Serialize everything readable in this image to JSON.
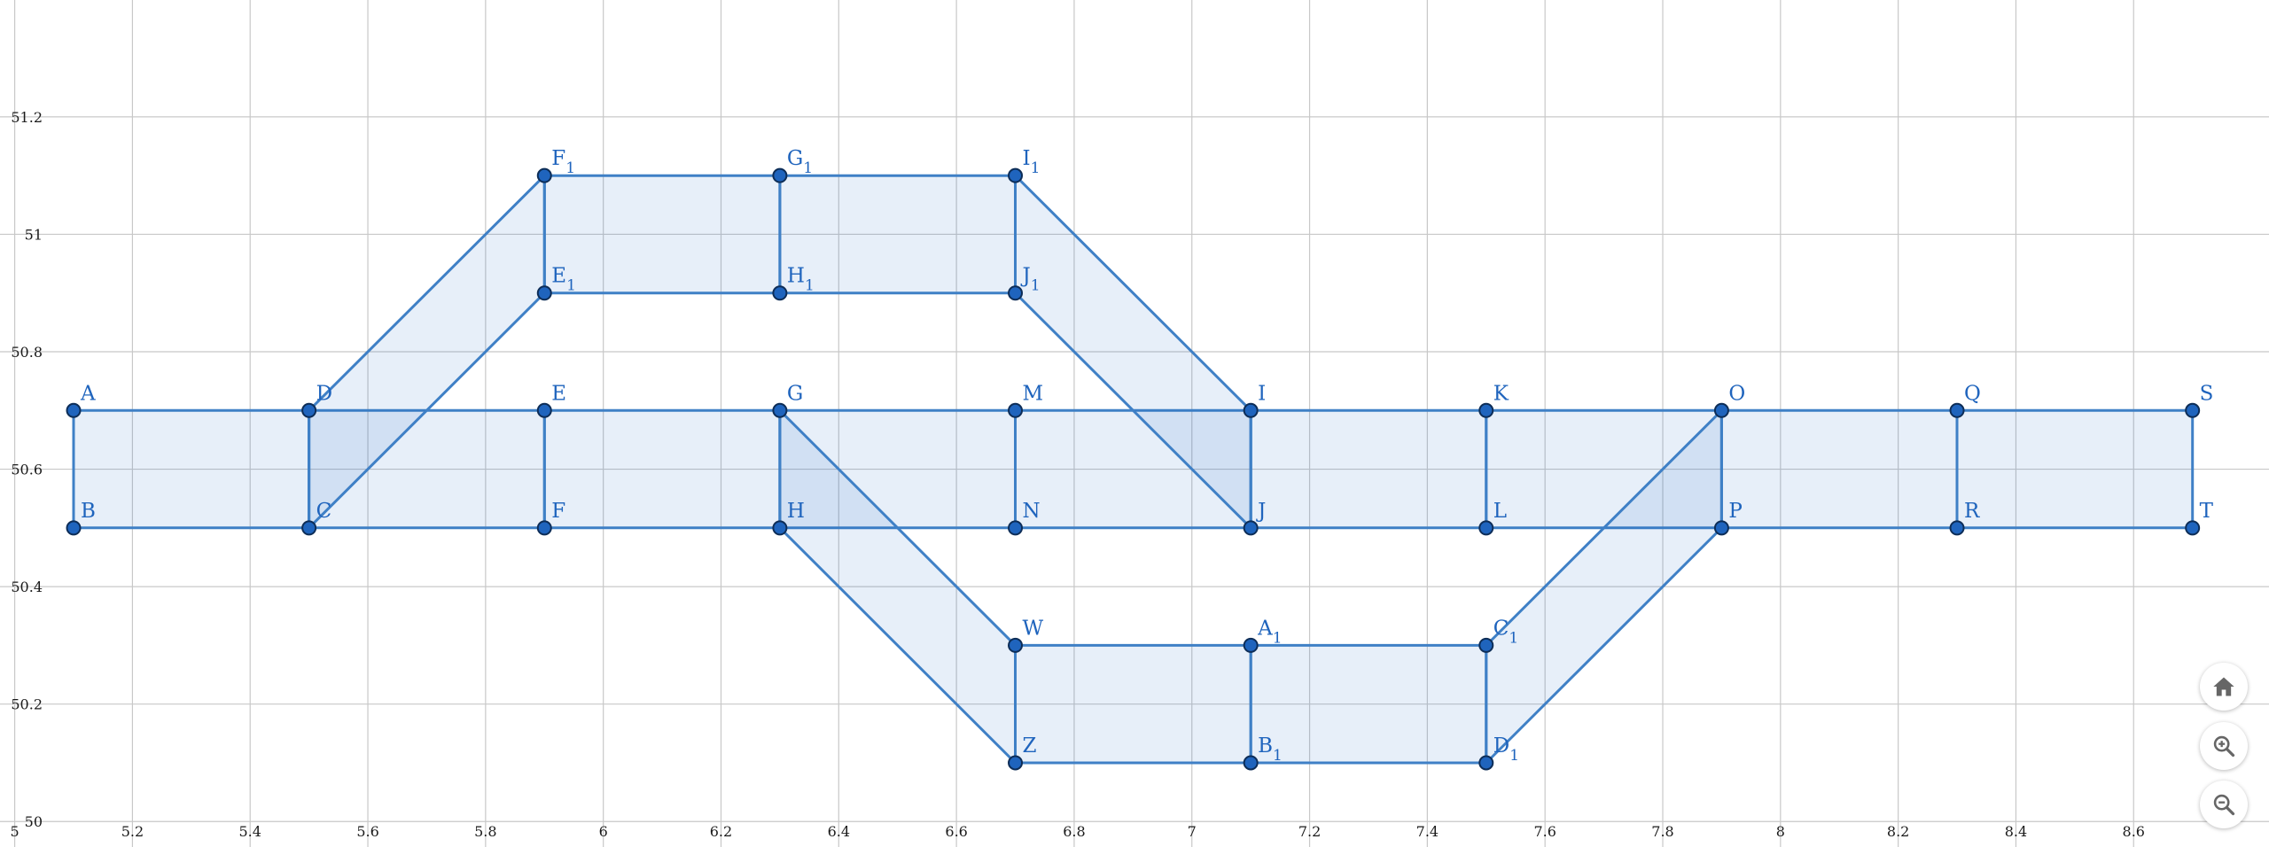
{
  "axes": {
    "xlim": [
      4.975,
      8.83
    ],
    "ylim": [
      49.9566,
      51.399
    ],
    "x_ticks": [
      "5",
      "5.2",
      "5.4",
      "5.6",
      "5.8",
      "6",
      "6.2",
      "6.4",
      "6.6",
      "6.8",
      "7",
      "7.2",
      "7.4",
      "7.6",
      "7.8",
      "8",
      "8.2",
      "8.4",
      "8.6"
    ],
    "y_ticks": [
      "50",
      "50.2",
      "50.4",
      "50.6",
      "50.8",
      "51",
      "51.2"
    ],
    "grid": true
  },
  "points": [
    {
      "name": "A",
      "x": 5.1,
      "y": 50.7
    },
    {
      "name": "B",
      "x": 5.1,
      "y": 50.5
    },
    {
      "name": "D",
      "x": 5.5,
      "y": 50.7
    },
    {
      "name": "C",
      "x": 5.5,
      "y": 50.5
    },
    {
      "name": "E",
      "x": 5.9,
      "y": 50.7
    },
    {
      "name": "F",
      "x": 5.9,
      "y": 50.5
    },
    {
      "name": "G",
      "x": 6.3,
      "y": 50.7
    },
    {
      "name": "H",
      "x": 6.3,
      "y": 50.5
    },
    {
      "name": "M",
      "x": 6.7,
      "y": 50.7
    },
    {
      "name": "N",
      "x": 6.7,
      "y": 50.5
    },
    {
      "name": "I",
      "x": 7.1,
      "y": 50.7
    },
    {
      "name": "J",
      "x": 7.1,
      "y": 50.5
    },
    {
      "name": "K",
      "x": 7.5,
      "y": 50.7
    },
    {
      "name": "L",
      "x": 7.5,
      "y": 50.5
    },
    {
      "name": "O",
      "x": 7.9,
      "y": 50.7
    },
    {
      "name": "P",
      "x": 7.9,
      "y": 50.5
    },
    {
      "name": "Q",
      "x": 8.3,
      "y": 50.7
    },
    {
      "name": "R",
      "x": 8.3,
      "y": 50.5
    },
    {
      "name": "S",
      "x": 8.7,
      "y": 50.7
    },
    {
      "name": "T",
      "x": 8.7,
      "y": 50.5
    },
    {
      "name": "F",
      "sub": "1",
      "x": 5.9,
      "y": 51.1
    },
    {
      "name": "E",
      "sub": "1",
      "x": 5.9,
      "y": 50.9
    },
    {
      "name": "G",
      "sub": "1",
      "x": 6.3,
      "y": 51.1
    },
    {
      "name": "H",
      "sub": "1",
      "x": 6.3,
      "y": 50.9
    },
    {
      "name": "I",
      "sub": "1",
      "x": 6.7,
      "y": 51.1
    },
    {
      "name": "J",
      "sub": "1",
      "x": 6.7,
      "y": 50.9
    },
    {
      "name": "W",
      "x": 6.7,
      "y": 50.3
    },
    {
      "name": "Z",
      "x": 6.7,
      "y": 50.1
    },
    {
      "name": "A",
      "sub": "1",
      "x": 7.1,
      "y": 50.3
    },
    {
      "name": "B",
      "sub": "1",
      "x": 7.1,
      "y": 50.1
    },
    {
      "name": "C",
      "sub": "1",
      "x": 7.5,
      "y": 50.3
    },
    {
      "name": "D",
      "sub": "1",
      "x": 7.5,
      "y": 50.1
    }
  ],
  "polygons": [
    [
      [
        5.1,
        50.7
      ],
      [
        5.5,
        50.7
      ],
      [
        5.5,
        50.5
      ],
      [
        5.1,
        50.5
      ]
    ],
    [
      [
        5.5,
        50.7
      ],
      [
        5.9,
        50.7
      ],
      [
        5.9,
        50.5
      ],
      [
        5.5,
        50.5
      ]
    ],
    [
      [
        5.9,
        50.7
      ],
      [
        6.3,
        50.7
      ],
      [
        6.3,
        50.5
      ],
      [
        5.9,
        50.5
      ]
    ],
    [
      [
        6.3,
        50.7
      ],
      [
        6.7,
        50.7
      ],
      [
        6.7,
        50.5
      ],
      [
        6.3,
        50.5
      ]
    ],
    [
      [
        6.7,
        50.7
      ],
      [
        7.1,
        50.7
      ],
      [
        7.1,
        50.5
      ],
      [
        6.7,
        50.5
      ]
    ],
    [
      [
        7.1,
        50.7
      ],
      [
        7.5,
        50.7
      ],
      [
        7.5,
        50.5
      ],
      [
        7.1,
        50.5
      ]
    ],
    [
      [
        7.5,
        50.7
      ],
      [
        7.9,
        50.7
      ],
      [
        7.9,
        50.5
      ],
      [
        7.5,
        50.5
      ]
    ],
    [
      [
        7.9,
        50.7
      ],
      [
        8.3,
        50.7
      ],
      [
        8.3,
        50.5
      ],
      [
        7.9,
        50.5
      ]
    ],
    [
      [
        8.3,
        50.7
      ],
      [
        8.7,
        50.7
      ],
      [
        8.7,
        50.5
      ],
      [
        8.3,
        50.5
      ]
    ],
    [
      [
        5.5,
        50.7
      ],
      [
        5.9,
        51.1
      ],
      [
        5.9,
        50.9
      ],
      [
        5.5,
        50.5
      ]
    ],
    [
      [
        5.9,
        51.1
      ],
      [
        6.3,
        51.1
      ],
      [
        6.3,
        50.9
      ],
      [
        5.9,
        50.9
      ]
    ],
    [
      [
        6.3,
        51.1
      ],
      [
        6.7,
        51.1
      ],
      [
        6.7,
        50.9
      ],
      [
        6.3,
        50.9
      ]
    ],
    [
      [
        6.7,
        51.1
      ],
      [
        7.1,
        50.7
      ],
      [
        7.1,
        50.5
      ],
      [
        6.7,
        50.9
      ]
    ],
    [
      [
        6.3,
        50.7
      ],
      [
        6.7,
        50.3
      ],
      [
        6.7,
        50.1
      ],
      [
        6.3,
        50.5
      ]
    ],
    [
      [
        6.7,
        50.3
      ],
      [
        7.1,
        50.3
      ],
      [
        7.1,
        50.1
      ],
      [
        6.7,
        50.1
      ]
    ],
    [
      [
        7.1,
        50.3
      ],
      [
        7.5,
        50.3
      ],
      [
        7.5,
        50.1
      ],
      [
        7.1,
        50.1
      ]
    ],
    [
      [
        7.5,
        50.3
      ],
      [
        7.9,
        50.7
      ],
      [
        7.9,
        50.5
      ],
      [
        7.5,
        50.1
      ]
    ]
  ],
  "controls": {
    "home": "home-icon",
    "zoom_in": "zoom-in-icon",
    "zoom_out": "zoom-out-icon"
  },
  "colors": {
    "stroke": "#3f80c6",
    "fill": "rgba(21, 101, 192, 0.10)",
    "point": "#1f64bd",
    "grid": "#c8c8c8"
  }
}
